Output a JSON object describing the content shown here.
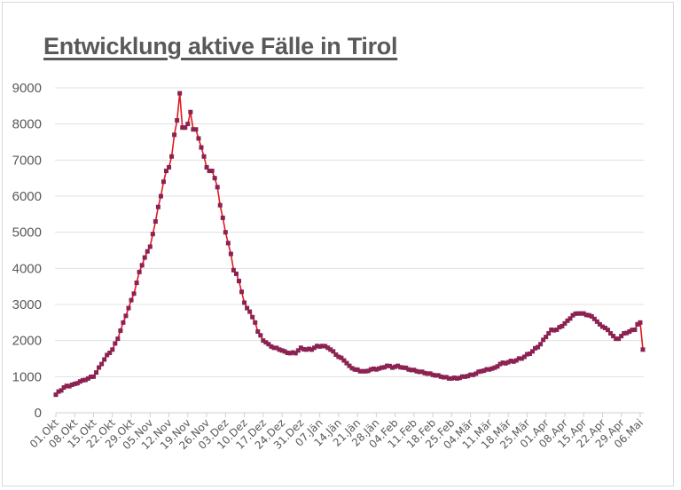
{
  "chart_data": {
    "type": "line",
    "title": "Entwicklung aktive Fälle in Tirol",
    "xlabel": "",
    "ylabel": "",
    "ylim": [
      0,
      9000
    ],
    "yticks": [
      0,
      1000,
      2000,
      3000,
      4000,
      5000,
      6000,
      7000,
      8000,
      9000
    ],
    "grid": true,
    "legend": "none",
    "x_start": "01.Okt",
    "x_end": "06.Mai",
    "total_days": 218,
    "categories": [
      "01.Okt",
      "08.Okt",
      "15.Okt",
      "22.Okt",
      "29.Okt",
      "05.Nov",
      "12.Nov",
      "19.Nov",
      "26.Nov",
      "03.Dez",
      "10.Dez",
      "17.Dez",
      "24.Dez",
      "31.Dez",
      "07.Jän",
      "14.Jän",
      "21.Jän",
      "28.Jän",
      "04.Feb",
      "11.Feb",
      "18.Feb",
      "25.Feb",
      "04.Mär",
      "11.Mär",
      "18.Mär",
      "25.Mär",
      "01.Apr",
      "08.Apr",
      "15.Apr",
      "22.Apr",
      "29.Apr",
      "06.Mai"
    ],
    "series": [
      {
        "name": "Aktive Fälle",
        "line_color": "#e31a1c",
        "marker_color": "#8b2252",
        "marker": "square",
        "key_points": [
          [
            0,
            500
          ],
          [
            3,
            700
          ],
          [
            7,
            800
          ],
          [
            10,
            900
          ],
          [
            14,
            1000
          ],
          [
            17,
            1350
          ],
          [
            19,
            1600
          ],
          [
            21,
            1750
          ],
          [
            23,
            2050
          ],
          [
            25,
            2500
          ],
          [
            27,
            2900
          ],
          [
            29,
            3300
          ],
          [
            31,
            3900
          ],
          [
            33,
            4300
          ],
          [
            35,
            4600
          ],
          [
            37,
            5300
          ],
          [
            38,
            5700
          ],
          [
            39,
            6000
          ],
          [
            40,
            6400
          ],
          [
            41,
            6700
          ],
          [
            42,
            6800
          ],
          [
            43,
            7100
          ],
          [
            44,
            7700
          ],
          [
            45,
            8100
          ],
          [
            46,
            8850
          ],
          [
            47,
            7900
          ],
          [
            48,
            7900
          ],
          [
            49,
            8000
          ],
          [
            50,
            8330
          ],
          [
            51,
            7850
          ],
          [
            52,
            7850
          ],
          [
            53,
            7600
          ],
          [
            54,
            7350
          ],
          [
            55,
            7100
          ],
          [
            56,
            6800
          ],
          [
            57,
            6700
          ],
          [
            58,
            6700
          ],
          [
            59,
            6500
          ],
          [
            60,
            6250
          ],
          [
            61,
            5750
          ],
          [
            62,
            5400
          ],
          [
            63,
            5000
          ],
          [
            64,
            4700
          ],
          [
            65,
            4400
          ],
          [
            66,
            3950
          ],
          [
            67,
            3850
          ],
          [
            68,
            3650
          ],
          [
            69,
            3350
          ],
          [
            70,
            3050
          ],
          [
            71,
            2900
          ],
          [
            72,
            2800
          ],
          [
            73,
            2650
          ],
          [
            74,
            2500
          ],
          [
            75,
            2250
          ],
          [
            77,
            2000
          ],
          [
            79,
            1900
          ],
          [
            81,
            1800
          ],
          [
            83,
            1750
          ],
          [
            85,
            1700
          ],
          [
            87,
            1650
          ],
          [
            89,
            1650
          ],
          [
            91,
            1800
          ],
          [
            93,
            1750
          ],
          [
            95,
            1750
          ],
          [
            97,
            1850
          ],
          [
            99,
            1850
          ],
          [
            101,
            1800
          ],
          [
            103,
            1700
          ],
          [
            105,
            1550
          ],
          [
            107,
            1450
          ],
          [
            109,
            1300
          ],
          [
            111,
            1200
          ],
          [
            113,
            1150
          ],
          [
            115,
            1150
          ],
          [
            117,
            1200
          ],
          [
            119,
            1200
          ],
          [
            121,
            1250
          ],
          [
            123,
            1300
          ],
          [
            125,
            1250
          ],
          [
            127,
            1300
          ],
          [
            129,
            1250
          ],
          [
            131,
            1200
          ],
          [
            134,
            1150
          ],
          [
            137,
            1100
          ],
          [
            140,
            1050
          ],
          [
            143,
            1000
          ],
          [
            146,
            950
          ],
          [
            149,
            950
          ],
          [
            152,
            1000
          ],
          [
            155,
            1050
          ],
          [
            158,
            1150
          ],
          [
            161,
            1200
          ],
          [
            163,
            1250
          ],
          [
            165,
            1350
          ],
          [
            168,
            1400
          ],
          [
            171,
            1450
          ],
          [
            174,
            1550
          ],
          [
            177,
            1700
          ],
          [
            180,
            1900
          ],
          [
            182,
            2100
          ],
          [
            184,
            2300
          ],
          [
            186,
            2300
          ],
          [
            188,
            2400
          ],
          [
            190,
            2550
          ],
          [
            192,
            2700
          ],
          [
            194,
            2750
          ],
          [
            196,
            2750
          ],
          [
            198,
            2700
          ],
          [
            200,
            2600
          ],
          [
            202,
            2450
          ],
          [
            204,
            2350
          ],
          [
            206,
            2200
          ],
          [
            208,
            2050
          ],
          [
            209,
            2050
          ],
          [
            211,
            2200
          ],
          [
            213,
            2250
          ],
          [
            215,
            2300
          ],
          [
            216,
            2450
          ],
          [
            217,
            2500
          ],
          [
            218,
            1750
          ]
        ]
      }
    ]
  }
}
